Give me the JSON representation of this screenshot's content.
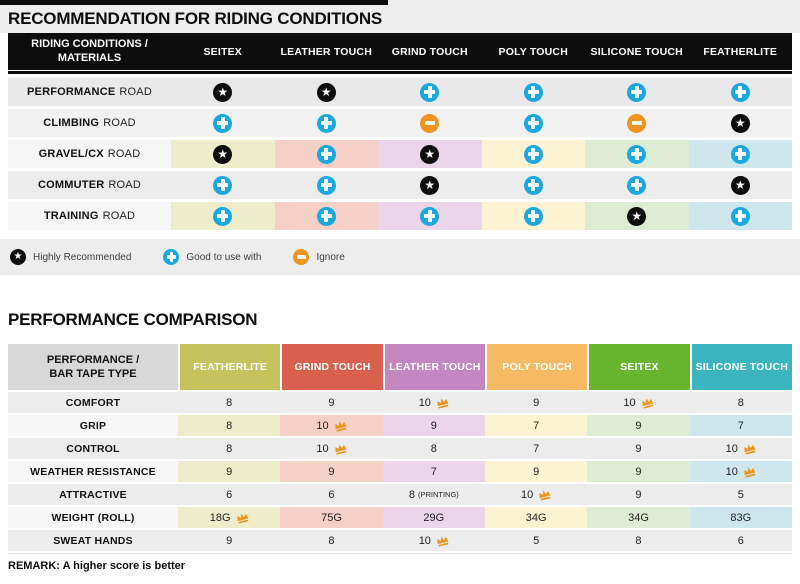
{
  "remark": "REMARK: A higher score is better",
  "colors": {
    "plus": "#1ba7e0",
    "minus": "#f0941f",
    "star_bg": "#0d0d0d",
    "crown": "#f0941f",
    "label_light": "#f6f6f6",
    "positional_light": [
      "#eeedcb",
      "#f5d0c7",
      "#ecd4e9",
      "#fcf3d2",
      "#ddecd2",
      "#cde7ec"
    ]
  },
  "chart_data": [
    {
      "type": "table",
      "title": "RECOMMENDATION FOR RIDING CONDITIONS",
      "row_header": "RIDING CONDITIONS / MATERIALS",
      "columns": [
        "SEITEX",
        "LEATHER TOUCH",
        "GRIND TOUCH",
        "POLY TOUCH",
        "SILICONE TOUCH",
        "FEATHERLITE"
      ],
      "rows": [
        {
          "label_bold": "PERFORMANCE",
          "label_rest": "ROAD",
          "colored": false,
          "bg": "#e9e9e9",
          "ratings": [
            "highly_recommended",
            "highly_recommended",
            "good",
            "good",
            "good",
            "good"
          ]
        },
        {
          "label_bold": "CLIMBING",
          "label_rest": "ROAD",
          "colored": false,
          "bg": "#f1f1f1",
          "ratings": [
            "good",
            "good",
            "ignore",
            "good",
            "ignore",
            "highly_recommended"
          ]
        },
        {
          "label_bold": "GRAVEL/CX",
          "label_rest": "ROAD",
          "colored": true,
          "bg": null,
          "ratings": [
            "highly_recommended",
            "good",
            "highly_recommended",
            "good",
            "good",
            "good"
          ]
        },
        {
          "label_bold": "COMMUTER",
          "label_rest": "ROAD",
          "colored": false,
          "bg": "#ececec",
          "ratings": [
            "good",
            "good",
            "highly_recommended",
            "good",
            "good",
            "highly_recommended"
          ]
        },
        {
          "label_bold": "TRAINING",
          "label_rest": "ROAD",
          "colored": true,
          "bg": null,
          "ratings": [
            "good",
            "good",
            "good",
            "good",
            "highly_recommended",
            "good"
          ]
        }
      ],
      "legend": [
        {
          "icon": "star-icon",
          "rating": "highly_recommended",
          "label": "Highly Recommended"
        },
        {
          "icon": "plus-icon",
          "rating": "good",
          "label": "Good to use with"
        },
        {
          "icon": "minus-icon",
          "rating": "ignore",
          "label": "Ignore"
        }
      ]
    },
    {
      "type": "table",
      "title": "PERFORMANCE COMPARISON",
      "row_header": "PERFORMANCE / BAR TAPE TYPE",
      "columns": [
        {
          "label": "FEATHERLITE",
          "color": "#c6c25e",
          "light": "#eeedcb"
        },
        {
          "label": "GRIND TOUCH",
          "color": "#d9604e",
          "light": "#f5d0c7"
        },
        {
          "label": "LEATHER TOUCH",
          "color": "#c486c1",
          "light": "#ecd4e9"
        },
        {
          "label": "POLY TOUCH",
          "color": "#f7ba64",
          "light": "#fcf3d2"
        },
        {
          "label": "SEITEX",
          "color": "#69b42e",
          "light": "#ddecd2"
        },
        {
          "label": "SILICONE TOUCH",
          "color": "#3ab5c0",
          "light": "#cde7ec"
        }
      ],
      "rows": [
        {
          "label": "COMFORT",
          "colored": false,
          "bg": "#ececec",
          "cells": [
            {
              "v": "8"
            },
            {
              "v": "9"
            },
            {
              "v": "10",
              "crown": true
            },
            {
              "v": "9"
            },
            {
              "v": "10",
              "crown": true
            },
            {
              "v": "8"
            }
          ]
        },
        {
          "label": "GRIP",
          "colored": true,
          "bg": null,
          "cells": [
            {
              "v": "8"
            },
            {
              "v": "10",
              "crown": true
            },
            {
              "v": "9"
            },
            {
              "v": "7"
            },
            {
              "v": "9"
            },
            {
              "v": "7"
            }
          ]
        },
        {
          "label": "CONTROL",
          "colored": false,
          "bg": "#ececec",
          "cells": [
            {
              "v": "8"
            },
            {
              "v": "10",
              "crown": true
            },
            {
              "v": "8"
            },
            {
              "v": "7"
            },
            {
              "v": "9"
            },
            {
              "v": "10",
              "crown": true
            }
          ]
        },
        {
          "label": "WEATHER RESISTANCE",
          "colored": true,
          "bg": null,
          "cells": [
            {
              "v": "9"
            },
            {
              "v": "9"
            },
            {
              "v": "7"
            },
            {
              "v": "9"
            },
            {
              "v": "9"
            },
            {
              "v": "10",
              "crown": true
            }
          ]
        },
        {
          "label": "ATTRACTIVE",
          "colored": false,
          "bg": "#ececec",
          "cells": [
            {
              "v": "6"
            },
            {
              "v": "6"
            },
            {
              "v": "8",
              "suffix": "(PRINTING)"
            },
            {
              "v": "10",
              "crown": true
            },
            {
              "v": "9"
            },
            {
              "v": "5"
            }
          ]
        },
        {
          "label": "WEIGHT (ROLL)",
          "colored": true,
          "bg": null,
          "cells": [
            {
              "v": "18G",
              "crown": true
            },
            {
              "v": "75G"
            },
            {
              "v": "29G"
            },
            {
              "v": "34G"
            },
            {
              "v": "34G"
            },
            {
              "v": "83G"
            }
          ]
        },
        {
          "label": "SWEAT HANDS",
          "colored": false,
          "bg": "#ececec",
          "cells": [
            {
              "v": "9"
            },
            {
              "v": "8"
            },
            {
              "v": "10",
              "crown": true
            },
            {
              "v": "5"
            },
            {
              "v": "8"
            },
            {
              "v": "6"
            }
          ]
        }
      ]
    }
  ]
}
